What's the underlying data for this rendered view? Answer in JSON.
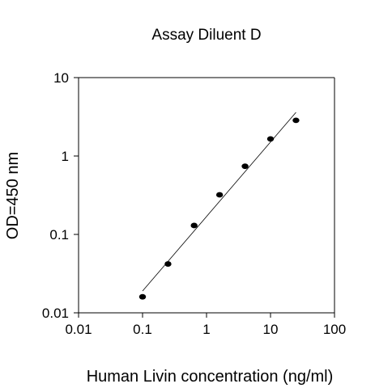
{
  "chart_data": {
    "type": "scatter",
    "title": "Assay Diluent D",
    "xlabel": "Human Livin concentration (ng/ml)",
    "ylabel": "OD=450 nm",
    "x_scale": "log",
    "y_scale": "log",
    "xlim": [
      0.01,
      100
    ],
    "ylim": [
      0.01,
      10
    ],
    "x_ticks": [
      {
        "value": 0.01,
        "label": "0.01"
      },
      {
        "value": 0.1,
        "label": "0.1"
      },
      {
        "value": 1,
        "label": "1"
      },
      {
        "value": 10,
        "label": "10"
      },
      {
        "value": 100,
        "label": "100"
      }
    ],
    "y_ticks": [
      {
        "value": 0.01,
        "label": "0.01"
      },
      {
        "value": 0.1,
        "label": "0.1"
      },
      {
        "value": 1,
        "label": "1"
      },
      {
        "value": 10,
        "label": "10"
      }
    ],
    "grid": false,
    "legend": "none",
    "points": [
      {
        "x": 0.1,
        "y": 0.016
      },
      {
        "x": 0.25,
        "y": 0.042
      },
      {
        "x": 0.64,
        "y": 0.13
      },
      {
        "x": 1.6,
        "y": 0.32
      },
      {
        "x": 4,
        "y": 0.74
      },
      {
        "x": 10,
        "y": 1.65
      },
      {
        "x": 25,
        "y": 2.85
      }
    ],
    "fit_line": [
      {
        "x": 0.1,
        "y": 0.019
      },
      {
        "x": 25,
        "y": 3.6
      }
    ]
  }
}
